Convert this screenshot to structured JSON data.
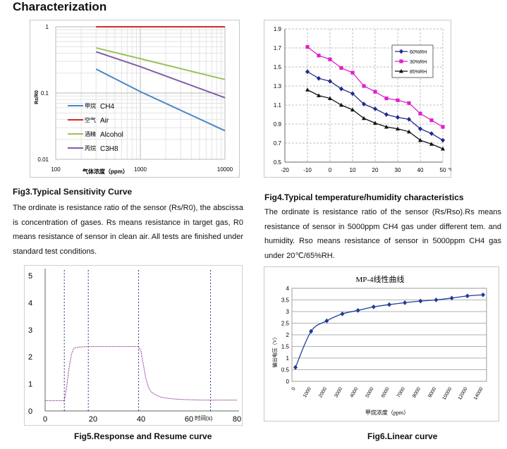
{
  "page": {
    "title": "Characterization"
  },
  "fig3": {
    "caption": "Fig3.Typical Sensitivity Curve",
    "paragraph": "The ordinate is resistance ratio of the sensor (Rs/R0), the abscissa is concentration of gases. Rs means resistance in target gas, R0 means resistance of sensor in clean air. All tests are finished under standard test conditions.",
    "chart_data": {
      "type": "line",
      "ylabel": "Rs/R0",
      "xlabel": "气体浓度（ppm）",
      "x_scale": "log",
      "y_scale": "log",
      "xlim": [
        100,
        10000
      ],
      "ylim": [
        0.01,
        1
      ],
      "x_ticks": [
        "100",
        "1000",
        "10000"
      ],
      "y_ticks": [
        "1",
        "0.1",
        "0.01"
      ],
      "grid": true,
      "legend_position": "lower-left",
      "series": [
        {
          "name": "CH4",
          "name_cn": "甲烷",
          "color": "#4a86c8",
          "x": [
            300,
            1000,
            10000
          ],
          "y": [
            0.23,
            0.105,
            0.027
          ]
        },
        {
          "name": "Air",
          "name_cn": "空气",
          "color": "#d8262a",
          "x": [
            300,
            1000,
            10000
          ],
          "y": [
            1.0,
            1.0,
            1.0
          ]
        },
        {
          "name": "Alcohol",
          "name_cn": "酒精",
          "color": "#9bc25a",
          "x": [
            300,
            1000,
            10000
          ],
          "y": [
            0.48,
            0.33,
            0.16
          ]
        },
        {
          "name": "C3H8",
          "name_cn": "丙烷",
          "color": "#7f5fa8",
          "x": [
            300,
            1000,
            10000
          ],
          "y": [
            0.42,
            0.25,
            0.085
          ]
        }
      ]
    }
  },
  "fig4": {
    "caption": "Fig4.Typical temperature/humidity characteristics",
    "paragraph": "The ordinate is resistance ratio of the sensor (Rs/Rso).Rs means resistance of sensor in 5000ppm CH4 gas under different tem. and humidity. Rso means resistance of sensor in 5000ppm CH4 gas under 20℃/65%RH.",
    "chart_data": {
      "type": "line",
      "xlim": [
        -20,
        50
      ],
      "ylim": [
        0.5,
        1.9
      ],
      "x_ticks": [
        "-20",
        "-10",
        "0",
        "10",
        "20",
        "30",
        "40",
        "50"
      ],
      "x_unit": "℃",
      "y_ticks": [
        "0.5",
        "0.7",
        "0.9",
        "1.1",
        "1.3",
        "1.5",
        "1.7",
        "1.9"
      ],
      "grid": true,
      "legend_position": "top-right",
      "x": [
        -10,
        -5,
        0,
        5,
        10,
        15,
        20,
        25,
        30,
        35,
        40,
        45,
        50
      ],
      "series": [
        {
          "name": "60%RH",
          "color": "#1f2a8c",
          "marker": "diamond",
          "values": [
            1.45,
            1.38,
            1.35,
            1.27,
            1.22,
            1.11,
            1.06,
            1.0,
            0.97,
            0.95,
            0.85,
            0.8,
            0.73
          ]
        },
        {
          "name": "30%RH",
          "color": "#e020c8",
          "marker": "square",
          "values": [
            1.71,
            1.62,
            1.58,
            1.49,
            1.44,
            1.3,
            1.24,
            1.17,
            1.15,
            1.12,
            1.01,
            0.94,
            0.87
          ]
        },
        {
          "name": "85%RH",
          "color": "#111111",
          "marker": "triangle",
          "values": [
            1.26,
            1.2,
            1.17,
            1.1,
            1.05,
            0.96,
            0.91,
            0.87,
            0.85,
            0.82,
            0.73,
            0.69,
            0.64
          ]
        }
      ]
    }
  },
  "fig5": {
    "caption": "Fig5.Response and Resume curve",
    "chart_data": {
      "type": "line",
      "xlim": [
        0,
        80
      ],
      "ylim": [
        0,
        5
      ],
      "x_ticks": [
        "0",
        "20",
        "40",
        "60",
        "80"
      ],
      "y_ticks": [
        "0",
        "1",
        "2",
        "3",
        "4",
        "5"
      ],
      "xlabel": "时间(s)",
      "vlines": [
        8,
        18,
        39,
        69
      ],
      "series": [
        {
          "name": "",
          "color": "#8a2a8a",
          "x": [
            0,
            8,
            9,
            10,
            11,
            12,
            14,
            16,
            18,
            20,
            25,
            30,
            35,
            39,
            40,
            41,
            42,
            43,
            44,
            46,
            48,
            50,
            54,
            58,
            62,
            66,
            70,
            75,
            80
          ],
          "y": [
            0.38,
            0.38,
            0.9,
            1.6,
            2.1,
            2.32,
            2.36,
            2.37,
            2.38,
            2.38,
            2.38,
            2.38,
            2.38,
            2.38,
            2.2,
            1.7,
            1.2,
            0.9,
            0.72,
            0.6,
            0.52,
            0.48,
            0.44,
            0.42,
            0.41,
            0.4,
            0.4,
            0.4,
            0.4
          ]
        }
      ]
    }
  },
  "fig6": {
    "caption": "Fig6.Linear curve",
    "chart_data": {
      "type": "line",
      "title": "MP-4线性曲线",
      "ylabel": "输出电压（V）",
      "xlabel": "甲烷浓度（ppm）",
      "xlim": [
        0,
        14000
      ],
      "ylim": [
        0,
        4
      ],
      "x_ticks": [
        "0",
        "1000",
        "2000",
        "3000",
        "4000",
        "5000",
        "6000",
        "7000",
        "8000",
        "9000",
        "10000",
        "12000",
        "14000"
      ],
      "y_ticks": [
        "0",
        "0.5",
        "1",
        "1.5",
        "2",
        "2.5",
        "3",
        "3.5",
        "4"
      ],
      "grid": true,
      "series": [
        {
          "name": "",
          "color": "#1f3b9a",
          "x": [
            0,
            1000,
            2000,
            3000,
            4000,
            5000,
            6000,
            7000,
            8000,
            9000,
            10000,
            12000,
            14000
          ],
          "y": [
            0.6,
            2.15,
            2.6,
            2.9,
            3.05,
            3.2,
            3.3,
            3.38,
            3.45,
            3.5,
            3.58,
            3.67,
            3.72
          ]
        }
      ]
    }
  }
}
